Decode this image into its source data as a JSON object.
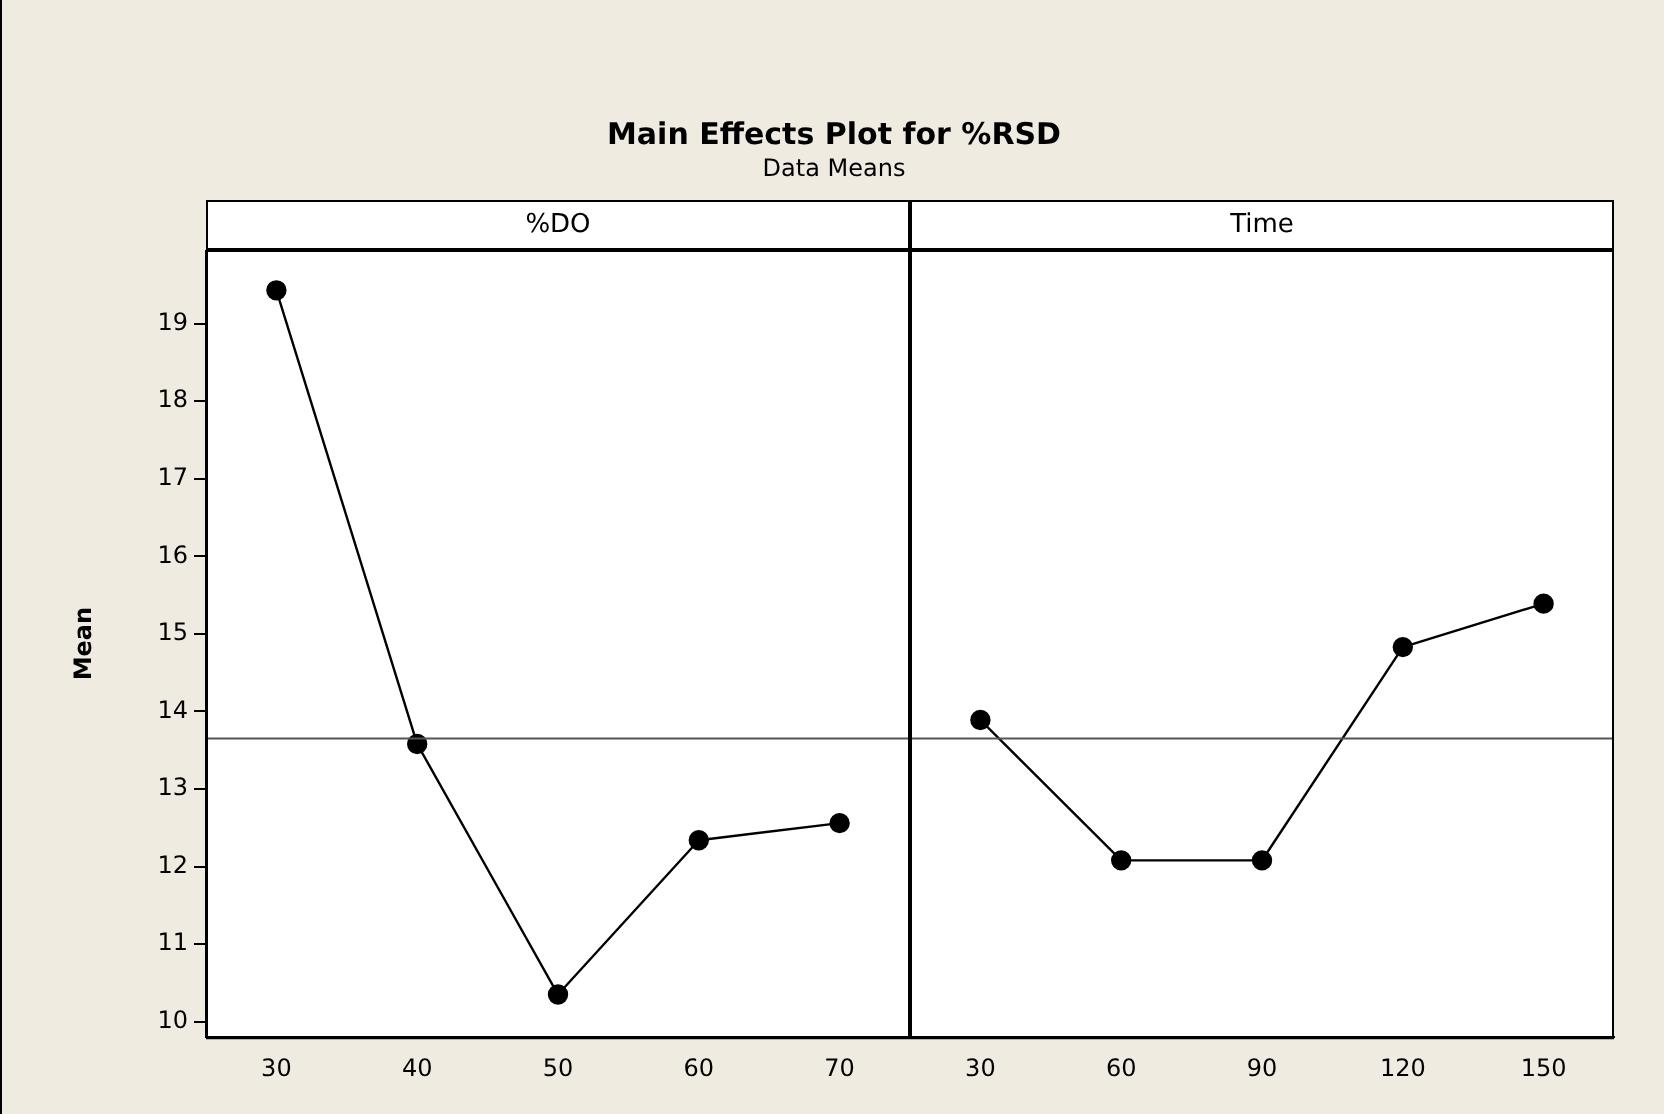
{
  "chart_data": [
    {
      "type": "other",
      "title": "Main Effects Plot for %RSD",
      "subtitle": "Data Means"
    },
    {
      "type": "line",
      "title": "%DO",
      "ylabel": "Mean",
      "categories": [
        "30",
        "40",
        "50",
        "60",
        "70"
      ],
      "values": [
        19.43,
        13.58,
        10.35,
        12.34,
        12.56
      ],
      "color": "#000000",
      "marker": "circle",
      "grid": false,
      "legend": false,
      "ylim": [
        9.8,
        19.95
      ],
      "yticks": [
        10,
        11,
        12,
        13,
        14,
        15,
        16,
        17,
        18,
        19
      ],
      "ref_lines": [
        {
          "axis": "y",
          "value": 13.65,
          "color": "#555555"
        }
      ]
    },
    {
      "type": "line",
      "title": "Time",
      "categories": [
        "30",
        "60",
        "90",
        "120",
        "150"
      ],
      "values": [
        13.89,
        12.08,
        12.08,
        14.83,
        15.39
      ],
      "color": "#000000",
      "marker": "circle",
      "grid": false,
      "legend": false,
      "tick_labels": "x",
      "ylim": [
        9.8,
        19.95
      ],
      "yticks": [
        10,
        11,
        12,
        13,
        14,
        15,
        16,
        17,
        18,
        19
      ],
      "ref_lines": [
        {
          "axis": "y",
          "value": 13.65,
          "color": "#555555"
        }
      ]
    }
  ]
}
